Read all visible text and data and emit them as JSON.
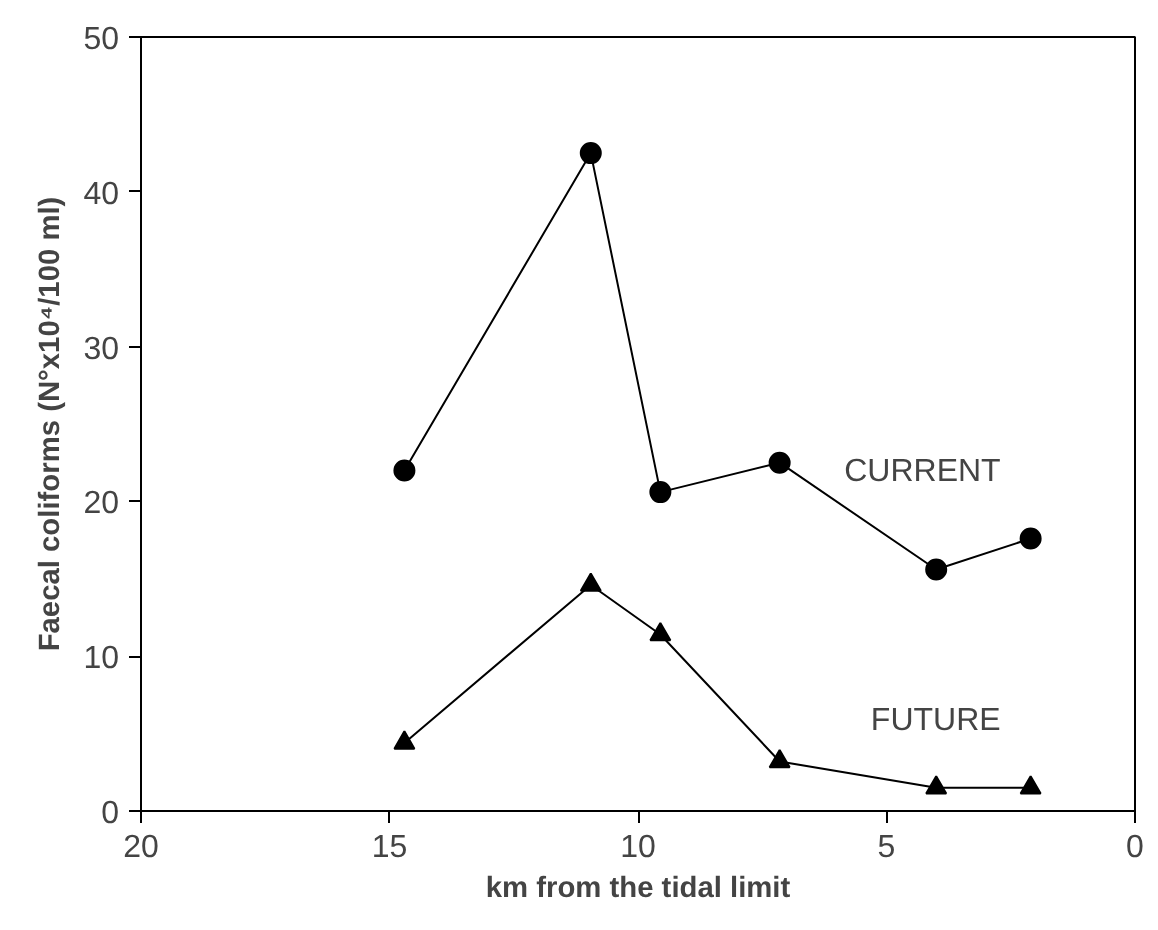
{
  "chart_data": {
    "type": "line",
    "xlabel": "km from the tidal limit",
    "ylabel": "Faecal coliforms (N°x10⁴/100 ml)",
    "x": [
      14.7,
      10.95,
      9.55,
      7.15,
      4.0,
      2.1
    ],
    "series": [
      {
        "name": "CURRENT",
        "color": "#000000",
        "marker": "circle",
        "values": [
          22.0,
          42.5,
          20.6,
          22.5,
          15.6,
          17.6
        ]
      },
      {
        "name": "FUTURE",
        "color": "#000000",
        "marker": "triangle",
        "values": [
          4.4,
          14.6,
          11.4,
          3.2,
          1.5,
          1.5
        ]
      }
    ],
    "xlim": [
      20,
      0
    ],
    "ylim": [
      0,
      50
    ],
    "xticks": [
      20,
      15,
      10,
      5,
      0
    ],
    "yticks": [
      0,
      10,
      20,
      30,
      40,
      50
    ],
    "grid": false,
    "legend": false,
    "line_style": "solid"
  }
}
